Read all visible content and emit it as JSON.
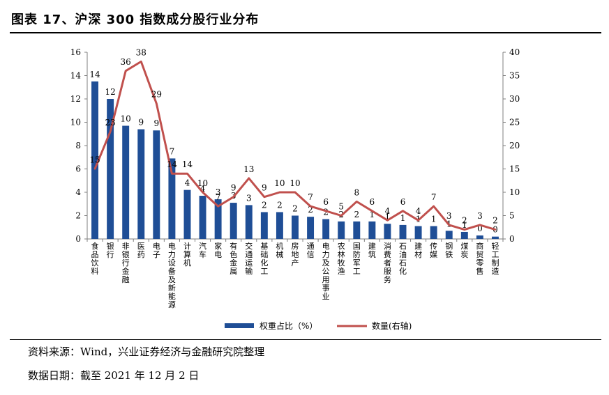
{
  "header": {
    "title": "图表 17、沪深 300 指数成分股行业分布"
  },
  "footer": {
    "source": "资料来源：Wind，兴业证券经济与金融研究院整理",
    "date": "数据日期：截至 2021 年 12 月 2 日"
  },
  "colors": {
    "bar": "#1f4e96",
    "line": "#c0504d"
  },
  "chart_data": {
    "type": "bar",
    "title": "",
    "categories": [
      "食品饮料",
      "银行",
      "非银行金融",
      "医药",
      "电子",
      "电力设备及新能源",
      "计算机",
      "汽车",
      "家电",
      "有色金属",
      "交通运输",
      "基础化工",
      "机械",
      "房地产",
      "通信",
      "电力及公用事业",
      "农林牧渔",
      "国防军工",
      "建筑",
      "消费者服务",
      "石油石化",
      "建材",
      "传媒",
      "钢铁",
      "煤炭",
      "商贸零售",
      "轻工制造"
    ],
    "series": [
      {
        "name": "权重占比（%）",
        "type": "bar",
        "axis": "left",
        "values": [
          13.5,
          12.0,
          9.7,
          9.4,
          9.3,
          6.9,
          4.2,
          3.7,
          3.4,
          3.1,
          2.9,
          2.3,
          2.3,
          2.0,
          1.9,
          1.7,
          1.5,
          1.5,
          1.5,
          1.3,
          1.2,
          1.1,
          1.1,
          0.7,
          0.6,
          0.3,
          0.2
        ],
        "labels": [
          "14",
          "12",
          "10",
          "9",
          "9",
          "7",
          "4",
          "4",
          "3",
          "3",
          "3",
          "2",
          "2",
          "2",
          "2",
          "2",
          "2",
          "2",
          "1",
          "1",
          "1",
          "1",
          "1",
          "1",
          "1",
          "0",
          "0"
        ]
      },
      {
        "name": "数量(右轴)",
        "type": "line",
        "axis": "right",
        "values": [
          15,
          23,
          36,
          38,
          29,
          14,
          14,
          10,
          7,
          9,
          13,
          9,
          10,
          10,
          7,
          6,
          5,
          8,
          6,
          4,
          6,
          4,
          7,
          3,
          2,
          3,
          2
        ],
        "labels": [
          "15",
          "23",
          "36",
          "38",
          "29",
          "14",
          "14",
          "10",
          "7",
          "9",
          "13",
          "9",
          "10",
          "10",
          "7",
          "6",
          "5",
          "8",
          "6",
          "4",
          "6",
          "4",
          "7",
          "3",
          "2",
          "3",
          "2"
        ]
      }
    ],
    "y_left": {
      "min": 0,
      "max": 16,
      "ticks": [
        "0",
        "2",
        "4",
        "6",
        "8",
        "10",
        "12",
        "14",
        "16"
      ]
    },
    "y_right": {
      "min": 0,
      "max": 40,
      "ticks": [
        "0",
        "5",
        "10",
        "15",
        "20",
        "25",
        "30",
        "35",
        "40"
      ]
    },
    "xlabel": "",
    "ylabel": "",
    "grid": false,
    "legend": "bottom-center"
  }
}
